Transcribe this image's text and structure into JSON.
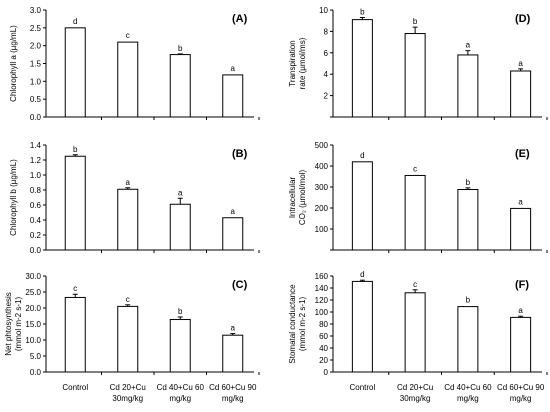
{
  "chart_data": [
    {
      "panel": "(A)",
      "type": "bar",
      "categories": [
        "Control",
        "Cd 20+Cu 30mg/kg",
        "Cd 40+Cu 60 mg/kg",
        "Cd 60+Cu 90 mg/kg"
      ],
      "values": [
        2.5,
        2.1,
        1.75,
        1.18
      ],
      "errors": [
        0.0,
        0.0,
        0.02,
        0.0
      ],
      "letters": [
        "d",
        "c",
        "b",
        "a"
      ],
      "ylabel": "Chlorophyll a (µg/mL)",
      "ylim": [
        0,
        3
      ],
      "yticks": [
        "0.0",
        "0.5",
        "1.0",
        "1.5",
        "2.0",
        "2.5",
        "3.0"
      ]
    },
    {
      "panel": "(B)",
      "type": "bar",
      "categories": [
        "Control",
        "Cd 20+Cu 30mg/kg",
        "Cd 40+Cu 60 mg/kg",
        "Cd 60+Cu 90 mg/kg"
      ],
      "values": [
        1.25,
        0.81,
        0.61,
        0.43
      ],
      "errors": [
        0.02,
        0.02,
        0.08,
        0.0
      ],
      "letters": [
        "b",
        "a",
        "a",
        "a"
      ],
      "ylabel": "Chlorophyll b (µg/mL)",
      "ylim": [
        0,
        1.4
      ],
      "yticks": [
        "0.0",
        "0.2",
        "0.4",
        "0.6",
        "0.8",
        "1.0",
        "1.2",
        "1.4"
      ]
    },
    {
      "panel": "(C)",
      "type": "bar",
      "categories": [
        "Control",
        "Cd 20+Cu 30mg/kg",
        "Cd 40+Cu 60 mg/kg",
        "Cd 60+Cu 90 mg/kg"
      ],
      "values": [
        23.3,
        20.5,
        16.4,
        11.5
      ],
      "errors": [
        1.0,
        0.5,
        0.8,
        0.5
      ],
      "letters": [
        "c",
        "c",
        "b",
        "a"
      ],
      "ylabel": "Net phtosynthesis (mmol m-2 s-1)",
      "ylim": [
        0,
        30
      ],
      "yticks": [
        "0.0",
        "5.0",
        "10.0",
        "15.0",
        "20.0",
        "25.0",
        "30.0"
      ]
    },
    {
      "panel": "(D)",
      "type": "bar",
      "categories": [
        "Control",
        "Cd 20+Cu 30mg/kg",
        "Cd 40+Cu 60 mg/kg",
        "Cd 60+Cu 90 mg/kg"
      ],
      "values": [
        9.1,
        7.8,
        5.8,
        4.3
      ],
      "errors": [
        0.2,
        0.6,
        0.4,
        0.2
      ],
      "letters": [
        "b",
        "b",
        "a",
        "a"
      ],
      "ylabel": "Transpiration rate (µmol/ms)",
      "ylim": [
        0,
        10
      ],
      "yticks": [
        "",
        "2",
        "4",
        "6",
        "8",
        "10"
      ]
    },
    {
      "panel": "(E)",
      "type": "bar",
      "categories": [
        "Control",
        "Cd 20+Cu 30mg/kg",
        "Cd 40+Cu 60 mg/kg",
        "Cd 60+Cu 90 mg/kg"
      ],
      "values": [
        420,
        355,
        288,
        198
      ],
      "errors": [
        0,
        0,
        8,
        0
      ],
      "letters": [
        "d",
        "c",
        "b",
        "a"
      ],
      "ylabel": "Intracellular CO₂ (µmol/mol)",
      "ylim": [
        0,
        500
      ],
      "yticks": [
        "",
        "100",
        "200",
        "300",
        "400",
        "500"
      ]
    },
    {
      "panel": "(F)",
      "type": "bar",
      "categories": [
        "Control",
        "Cd 20+Cu 30mg/kg",
        "Cd 40+Cu 60 mg/kg",
        "Cd 60+Cu 90 mg/kg"
      ],
      "values": [
        151,
        132,
        109,
        91
      ],
      "errors": [
        2,
        5,
        0,
        2
      ],
      "letters": [
        "d",
        "c",
        "b",
        "a"
      ],
      "ylabel": "Stomatal conductance (mmol m-2 s-1)",
      "ylim": [
        0,
        160
      ],
      "yticks": [
        "0",
        "20",
        "40",
        "60",
        "80",
        "100",
        "120",
        "140",
        "160"
      ]
    }
  ],
  "x_labels": [
    [
      "Control"
    ],
    [
      "Cd 20+Cu",
      "30mg/kg"
    ],
    [
      "Cd 40+Cu 60",
      "mg/kg"
    ],
    [
      "Cd 60+Cu 90",
      "mg/kg"
    ]
  ],
  "style": {
    "bar_fill": "#ffffff",
    "bar_stroke": "#000000",
    "axis_color": "#000000"
  }
}
